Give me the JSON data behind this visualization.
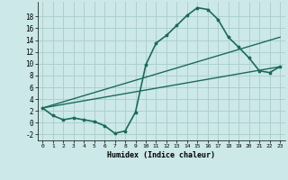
{
  "xlabel": "Humidex (Indice chaleur)",
  "background_color": "#cce8e8",
  "grid_color": "#aacccc",
  "line_color": "#1a6b5a",
  "x_ticks": [
    0,
    1,
    2,
    3,
    4,
    5,
    6,
    7,
    8,
    9,
    10,
    11,
    12,
    13,
    14,
    15,
    16,
    17,
    18,
    19,
    20,
    21,
    22,
    23
  ],
  "y_ticks": [
    -2,
    0,
    2,
    4,
    6,
    8,
    10,
    12,
    14,
    16,
    18
  ],
  "ylim": [
    -3,
    20.5
  ],
  "xlim": [
    -0.5,
    23.5
  ],
  "series": [
    {
      "x": [
        0,
        1,
        2,
        3,
        4,
        5,
        6,
        7,
        8,
        9,
        10,
        11,
        12,
        13,
        14,
        15,
        16,
        17,
        18,
        19,
        20,
        21,
        22,
        23
      ],
      "y": [
        2.5,
        1.2,
        0.5,
        0.8,
        0.5,
        0.2,
        -0.5,
        -1.8,
        -1.4,
        1.8,
        9.8,
        13.5,
        14.8,
        16.5,
        18.2,
        19.5,
        19.2,
        17.5,
        14.5,
        12.8,
        11.0,
        8.8,
        8.5,
        9.5
      ],
      "marker": "*",
      "linewidth": 1.2
    },
    {
      "x": [
        0,
        23
      ],
      "y": [
        2.5,
        9.5
      ],
      "marker": null,
      "linewidth": 1.0
    },
    {
      "x": [
        0,
        23
      ],
      "y": [
        2.5,
        14.5
      ],
      "marker": null,
      "linewidth": 1.0
    }
  ]
}
